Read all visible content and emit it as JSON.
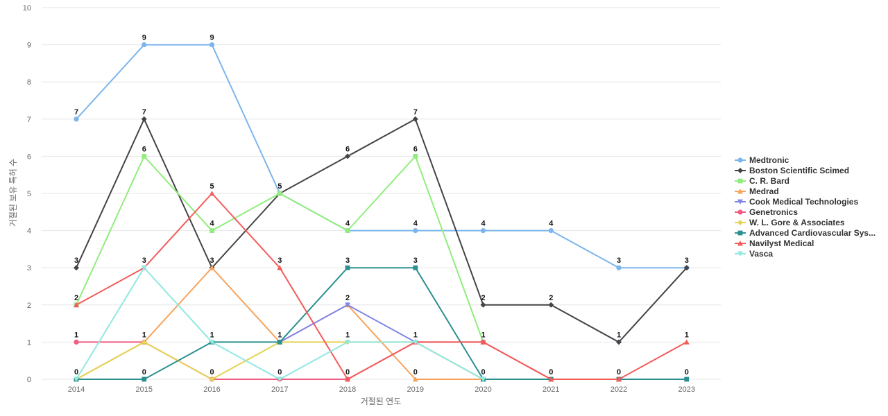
{
  "chart_data": {
    "type": "line",
    "title": "",
    "xlabel": "거절된 연도",
    "ylabel": "거절된 보유 특허 수",
    "x": [
      "2014",
      "2015",
      "2016",
      "2017",
      "2018",
      "2019",
      "2020",
      "2021",
      "2022",
      "2023"
    ],
    "ylim": [
      0,
      10
    ],
    "yticks": [
      "0",
      "1",
      "2",
      "3",
      "4",
      "5",
      "6",
      "7",
      "8",
      "9",
      "10"
    ],
    "grid": true,
    "legend_position": "right",
    "series": [
      {
        "name": "Medtronic",
        "color": "#7cb5ec",
        "marker": "circle",
        "values": [
          7,
          9,
          9,
          5,
          4,
          4,
          4,
          4,
          3,
          3
        ]
      },
      {
        "name": "Boston Scientific Scimed",
        "color": "#434348",
        "marker": "diamond",
        "values": [
          3,
          7,
          3,
          5,
          6,
          7,
          2,
          2,
          1,
          3
        ]
      },
      {
        "name": "C. R. Bard",
        "color": "#90ed7d",
        "marker": "square",
        "values": [
          2,
          6,
          4,
          5,
          4,
          6,
          1,
          null,
          null,
          null
        ]
      },
      {
        "name": "Medrad",
        "color": "#f7a35c",
        "marker": "triangle",
        "values": [
          0,
          1,
          3,
          1,
          2,
          0,
          0,
          null,
          null,
          null
        ]
      },
      {
        "name": "Cook Medical Technologies",
        "color": "#8085e9",
        "marker": "triangle-down",
        "values": [
          null,
          null,
          null,
          1,
          2,
          1,
          0,
          null,
          null,
          null
        ]
      },
      {
        "name": "Genetronics",
        "color": "#f15c80",
        "marker": "circle",
        "values": [
          1,
          1,
          0,
          0,
          0,
          1,
          1,
          0,
          null,
          null
        ]
      },
      {
        "name": "W. L. Gore & Associates",
        "color": "#e4d354",
        "marker": "diamond",
        "values": [
          0,
          1,
          0,
          1,
          1,
          1,
          0,
          null,
          null,
          null
        ]
      },
      {
        "name": "Advanced Cardiovascular Sys...",
        "color": "#2b908f",
        "marker": "square",
        "values": [
          0,
          0,
          1,
          1,
          3,
          3,
          0,
          0,
          0,
          0
        ]
      },
      {
        "name": "Navilyst Medical",
        "color": "#f45b5b",
        "marker": "triangle",
        "values": [
          2,
          3,
          5,
          3,
          0,
          1,
          1,
          0,
          0,
          1
        ]
      },
      {
        "name": "Vasca",
        "color": "#91e8e1",
        "marker": "triangle-down",
        "values": [
          0,
          3,
          1,
          0,
          1,
          1,
          0,
          null,
          null,
          null
        ]
      }
    ],
    "data_labels": [
      {
        "x": "2014",
        "values": [
          "7",
          "3",
          "2",
          "1",
          "0"
        ]
      },
      {
        "x": "2015",
        "values": [
          "9",
          "7",
          "6",
          "3",
          "1",
          "0"
        ]
      },
      {
        "x": "2016",
        "values": [
          "9",
          "5",
          "4",
          "3",
          "1",
          "0"
        ]
      },
      {
        "x": "2017",
        "values": [
          "5",
          "3",
          "1",
          "0"
        ]
      },
      {
        "x": "2018",
        "values": [
          "6",
          "4",
          "3",
          "2",
          "1",
          "0"
        ]
      },
      {
        "x": "2019",
        "values": [
          "7",
          "6",
          "4",
          "3",
          "1",
          "0"
        ]
      },
      {
        "x": "2020",
        "values": [
          "4",
          "2",
          "1",
          "0"
        ]
      },
      {
        "x": "2021",
        "values": [
          "4",
          "2",
          "0"
        ]
      },
      {
        "x": "2022",
        "values": [
          "3",
          "1",
          "0"
        ]
      },
      {
        "x": "2023",
        "values": [
          "3",
          "1",
          "0"
        ]
      }
    ]
  }
}
